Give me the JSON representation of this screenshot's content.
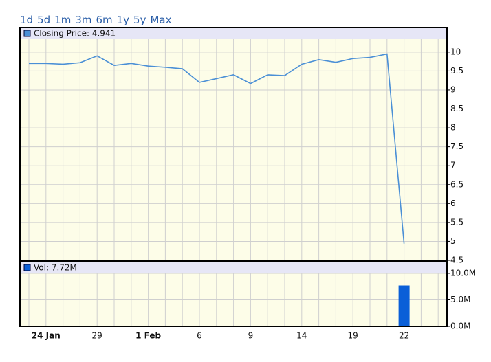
{
  "range_links": [
    "1d",
    "5d",
    "1m",
    "3m",
    "6m",
    "1y",
    "5y",
    "Max"
  ],
  "chart_data": [
    {
      "type": "line",
      "categories": [
        null,
        "24 Jan",
        null,
        null,
        "29",
        null,
        null,
        "1 Feb",
        null,
        null,
        "6",
        null,
        null,
        "9",
        null,
        null,
        "14",
        null,
        null,
        "19",
        null,
        null,
        "22",
        null,
        null
      ],
      "series": [
        {
          "name": "Closing Price: 4.941",
          "color": "#4a8fd6",
          "values": [
            9.7,
            9.7,
            9.68,
            9.72,
            9.9,
            9.65,
            9.7,
            9.63,
            9.6,
            9.56,
            9.2,
            9.3,
            9.4,
            9.17,
            9.4,
            9.38,
            9.68,
            9.8,
            9.73,
            9.83,
            9.86,
            9.95,
            4.941,
            null,
            null
          ]
        }
      ],
      "ylim": [
        4.5,
        10.65
      ],
      "yticks": [
        4.5,
        5,
        5.5,
        6,
        6.5,
        7,
        7.5,
        8,
        8.5,
        9,
        9.5,
        10
      ],
      "grid": true
    },
    {
      "type": "bar",
      "series": [
        {
          "name": "Vol: 7.72M",
          "color": "#0a5fd8",
          "values": [
            null,
            null,
            null,
            null,
            null,
            null,
            null,
            null,
            null,
            null,
            0.1,
            null,
            null,
            null,
            null,
            null,
            null,
            null,
            null,
            null,
            null,
            null,
            7.72,
            null,
            null
          ]
        }
      ],
      "ylim": [
        0,
        12.2
      ],
      "yticks": [
        {
          "value": 0,
          "label": "0.0M"
        },
        {
          "value": 5,
          "label": "5.0M"
        },
        {
          "value": 10,
          "label": "10.0M"
        }
      ],
      "grid": true
    }
  ]
}
